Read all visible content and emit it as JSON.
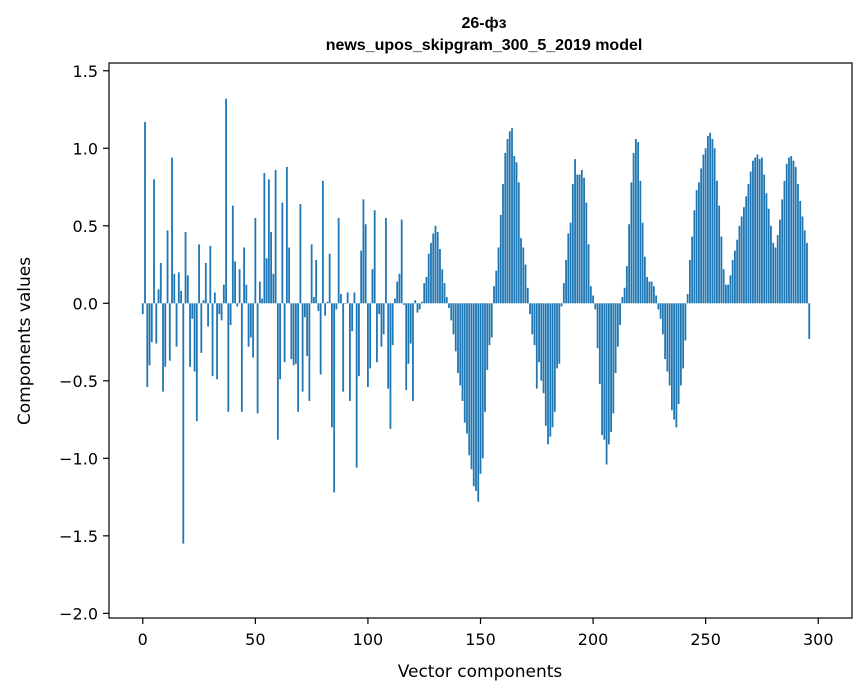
{
  "chart_data": {
    "type": "bar",
    "title_line1": "26-фз",
    "title_line2": "news_upos_skipgram_300_5_2019 model",
    "xlabel": "Vector components",
    "ylabel": "Components values",
    "xlim": [
      -15,
      315
    ],
    "ylim": [
      -2.03,
      1.55
    ],
    "xticks": [
      0,
      50,
      100,
      150,
      200,
      250,
      300
    ],
    "xtick_labels": [
      "0",
      "50",
      "100",
      "150",
      "200",
      "250",
      "300"
    ],
    "yticks": [
      1.5,
      1.0,
      0.5,
      0.0,
      -0.5,
      -1.0,
      -1.5,
      -2.0
    ],
    "ytick_labels": [
      "1.5",
      "1.0",
      "0.5",
      "0.0",
      "−0.5",
      "−1.0",
      "−1.5",
      "−2.0"
    ],
    "bar_color": "#1f77b4",
    "values": [
      -0.07,
      1.17,
      -0.54,
      -0.4,
      -0.25,
      0.8,
      -0.26,
      0.09,
      0.26,
      -0.57,
      -0.41,
      0.47,
      -0.37,
      0.94,
      0.19,
      -0.28,
      0.2,
      0.08,
      -1.55,
      0.46,
      0.18,
      -0.41,
      -0.1,
      -0.44,
      -0.76,
      0.38,
      -0.32,
      0.02,
      0.26,
      -0.15,
      0.37,
      -0.47,
      0.07,
      -0.49,
      -0.07,
      -0.11,
      0.12,
      1.32,
      -0.7,
      -0.14,
      0.63,
      0.27,
      -0.02,
      0.22,
      -0.7,
      0.36,
      0.12,
      -0.28,
      -0.22,
      -0.35,
      0.55,
      -0.71,
      0.14,
      0.03,
      0.84,
      0.29,
      0.8,
      0.46,
      0.19,
      0.86,
      -0.88,
      -0.49,
      0.65,
      -0.38,
      0.88,
      0.36,
      -0.36,
      -0.4,
      -0.39,
      -0.7,
      0.64,
      -0.57,
      -0.09,
      -0.34,
      -0.63,
      0.38,
      0.04,
      0.28,
      -0.05,
      -0.46,
      0.79,
      -0.08,
      0.01,
      0.32,
      -0.8,
      -1.22,
      -0.04,
      0.55,
      0.06,
      -0.57,
      0.0,
      0.07,
      -0.63,
      -0.18,
      0.07,
      -1.06,
      -0.47,
      0.34,
      0.67,
      0.51,
      -0.54,
      -0.42,
      0.22,
      0.6,
      -0.38,
      -0.07,
      -0.28,
      -0.2,
      0.55,
      -0.55,
      -0.81,
      -0.27,
      0.03,
      0.14,
      0.19,
      0.54,
      -0.01,
      -0.56,
      -0.39,
      -0.26,
      -0.63,
      0.02,
      -0.06,
      -0.04,
      0.01,
      0.13,
      0.17,
      0.32,
      0.39,
      0.45,
      0.5,
      0.46,
      0.35,
      0.22,
      0.13,
      0.04,
      -0.03,
      -0.11,
      -0.2,
      -0.31,
      -0.45,
      -0.53,
      -0.63,
      -0.77,
      -0.84,
      -0.98,
      -1.07,
      -1.18,
      -1.21,
      -1.28,
      -1.1,
      -1.0,
      -0.7,
      -0.43,
      -0.27,
      -0.22,
      0.11,
      0.21,
      0.36,
      0.57,
      0.77,
      0.97,
      1.06,
      1.11,
      1.13,
      0.95,
      0.91,
      0.78,
      0.42,
      0.36,
      0.25,
      0.1,
      -0.07,
      -0.2,
      -0.27,
      -0.55,
      -0.38,
      -0.5,
      -0.58,
      -0.79,
      -0.91,
      -0.86,
      -0.8,
      -0.7,
      -0.42,
      -0.39,
      -0.02,
      0.13,
      0.28,
      0.45,
      0.52,
      0.77,
      0.93,
      0.83,
      0.83,
      0.86,
      0.81,
      0.65,
      0.38,
      0.11,
      0.05,
      -0.04,
      -0.29,
      -0.52,
      -0.85,
      -0.88,
      -1.04,
      -0.91,
      -0.83,
      -0.71,
      -0.45,
      -0.28,
      -0.14,
      0.04,
      0.1,
      0.24,
      0.51,
      0.78,
      0.97,
      1.06,
      1.04,
      0.79,
      0.52,
      0.3,
      0.17,
      0.14,
      0.14,
      0.11,
      0.05,
      -0.04,
      -0.1,
      -0.2,
      -0.36,
      -0.44,
      -0.53,
      -0.69,
      -0.75,
      -0.8,
      -0.65,
      -0.53,
      -0.42,
      -0.24,
      0.06,
      0.28,
      0.43,
      0.6,
      0.73,
      0.78,
      0.87,
      0.96,
      1.0,
      1.08,
      1.1,
      1.06,
      1.0,
      0.79,
      0.63,
      0.43,
      0.22,
      0.12,
      0.12,
      0.18,
      0.28,
      0.34,
      0.41,
      0.5,
      0.56,
      0.62,
      0.69,
      0.77,
      0.85,
      0.92,
      0.94,
      0.96,
      0.93,
      0.94,
      0.83,
      0.71,
      0.61,
      0.5,
      0.39,
      0.36,
      0.44,
      0.54,
      0.67,
      0.79,
      0.9,
      0.94,
      0.95,
      0.92,
      0.88,
      0.77,
      0.66,
      0.56,
      0.47,
      0.39,
      -0.23
    ]
  }
}
